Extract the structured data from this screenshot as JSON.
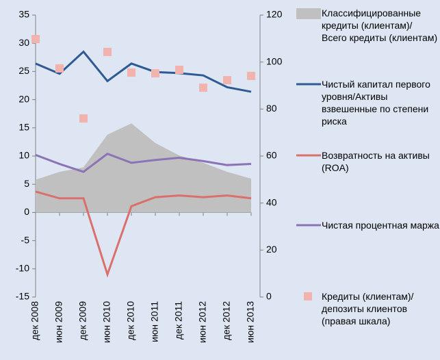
{
  "chart_data": {
    "type": "line",
    "categories": [
      "дек 2008",
      "июн 2009",
      "дек 2009",
      "июн 2010",
      "дек 2010",
      "июн 2011",
      "дек 2011",
      "июн 2012",
      "дек 2012",
      "июн 2013"
    ],
    "ylim": [
      -15,
      35
    ],
    "yticks": [
      -15,
      -10,
      -5,
      0,
      5,
      10,
      15,
      20,
      25,
      30,
      35
    ],
    "y2lim": [
      0,
      120
    ],
    "y2ticks": [
      0,
      20,
      40,
      60,
      80,
      100,
      120
    ],
    "series": [
      {
        "name": "Классифицированные кредиты (клиентам)/ Всего кредиты (клиентам)",
        "type": "area",
        "color": "#c0c0c0",
        "values": [
          5.8,
          7.2,
          8.0,
          13.8,
          15.8,
          12.3,
          10.1,
          8.8,
          7.2,
          6.0
        ]
      },
      {
        "name": "Чистый капитал первого уровня/Активы взвешенные  по степени риска",
        "type": "line",
        "color": "#2e5a94",
        "values": [
          26.4,
          24.6,
          28.5,
          23.3,
          26.4,
          24.9,
          24.7,
          24.3,
          22.2,
          21.4
        ]
      },
      {
        "name": "Возвратность на активы (ROA)",
        "type": "line",
        "color": "#d9706b",
        "values": [
          3.7,
          2.5,
          2.5,
          -11.0,
          1.1,
          2.7,
          3.0,
          2.7,
          3.0,
          2.5
        ]
      },
      {
        "name": "Чистая процентная маржа",
        "type": "line",
        "color": "#8c73b5",
        "values": [
          10.2,
          8.6,
          7.2,
          10.4,
          8.8,
          9.3,
          9.7,
          9.1,
          8.4,
          8.6
        ]
      },
      {
        "name": "Кредиты (клиентам)/депозиты клиентов (правая шкала)",
        "type": "scatter",
        "axis": "y2",
        "color": "#f2b3ae",
        "values": [
          109.8,
          97.3,
          76.0,
          104.3,
          95.5,
          95.2,
          96.7,
          89.1,
          92.3,
          94.1
        ]
      }
    ]
  }
}
